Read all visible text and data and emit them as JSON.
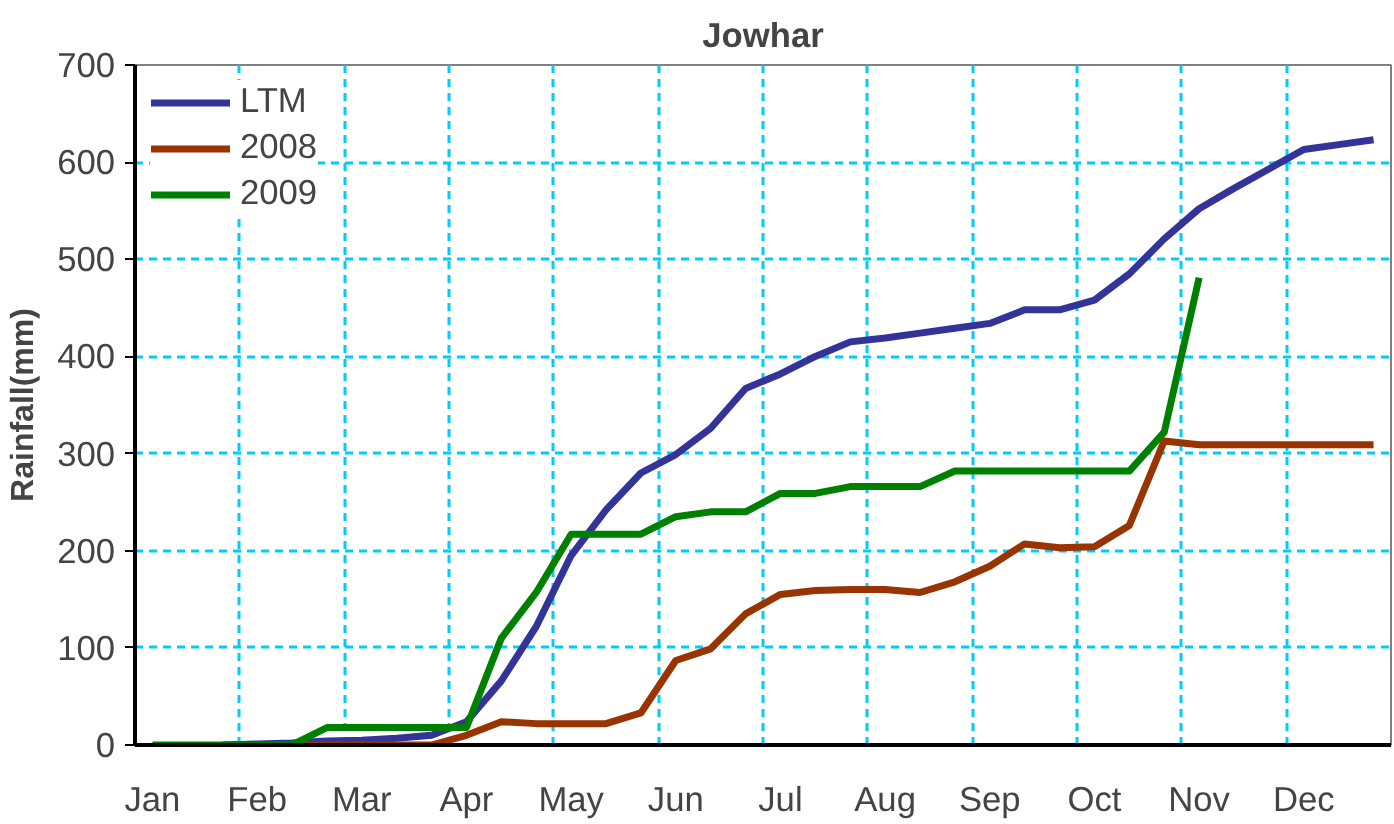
{
  "chart_data": {
    "type": "line",
    "title": "Jowhar",
    "ylabel": "Rainfall(mm)",
    "categories": [
      "Jan",
      null,
      null,
      "Feb",
      null,
      null,
      "Mar",
      null,
      null,
      "Apr",
      null,
      null,
      "May",
      null,
      null,
      "Jun",
      null,
      null,
      "Jul",
      null,
      null,
      "Aug",
      null,
      null,
      "Sep",
      null,
      null,
      "Oct",
      null,
      null,
      "Nov",
      null,
      null,
      "Dec",
      null,
      null
    ],
    "series": [
      {
        "name": "LTM",
        "color": "#333399",
        "values": [
          null,
          null,
          0,
          1,
          2,
          4,
          5,
          7,
          10,
          24,
          66,
          122,
          195,
          242,
          280,
          299,
          326,
          367,
          382,
          400,
          415,
          419,
          424,
          429,
          434,
          448,
          448,
          458,
          485,
          521,
          552,
          573,
          593,
          613,
          618,
          623
        ]
      },
      {
        "name": "2008",
        "color": "#993300",
        "values": [
          null,
          null,
          null,
          0,
          0,
          0,
          0,
          0,
          0,
          10,
          24,
          22,
          22,
          22,
          33,
          87,
          99,
          135,
          155,
          159,
          160,
          160,
          157,
          168,
          184,
          207,
          203,
          204,
          226,
          313,
          309,
          309,
          309,
          309,
          309,
          309
        ]
      },
      {
        "name": "2009",
        "color": "#008000",
        "values": [
          0,
          0,
          0,
          0,
          0,
          18,
          18,
          18,
          18,
          18,
          110,
          157,
          217,
          217,
          217,
          235,
          240,
          240,
          259,
          259,
          266,
          266,
          266,
          282,
          282,
          282,
          282,
          282,
          282,
          322,
          481,
          null,
          null,
          null,
          null,
          null
        ]
      }
    ],
    "ylim": [
      0,
      700
    ],
    "yticks": [
      0,
      100,
      200,
      300,
      400,
      500,
      600,
      700
    ],
    "grid": true,
    "legend": "top left",
    "line_style": "solid"
  }
}
